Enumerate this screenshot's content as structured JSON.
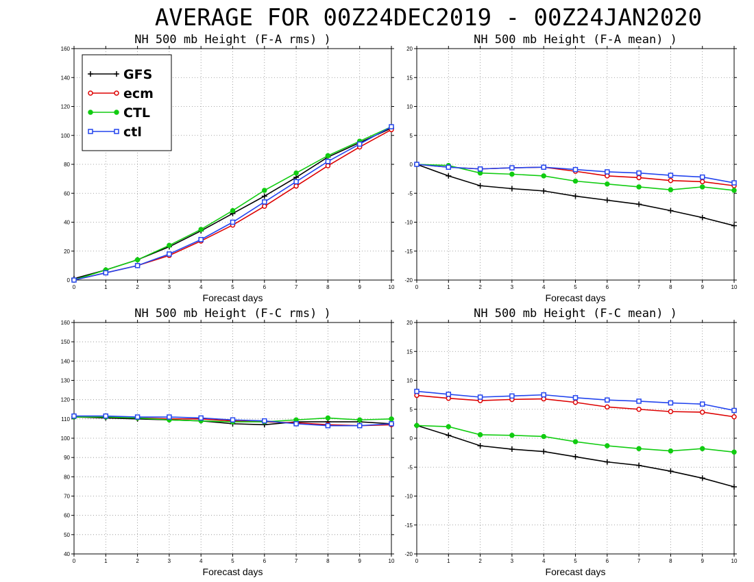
{
  "figure_title": "AVERAGE FOR 00Z24DEC2019 - 00Z24JAN2020",
  "colors": {
    "GFS": "#000000",
    "ecm": "#dd0000",
    "CTL": "#11cc11",
    "ctl": "#2244ee"
  },
  "chart_data": [
    {
      "type": "line",
      "title": "NH 500 mb Height (F-A rms) )",
      "xlabel": "Forecast days",
      "ylabel": "",
      "xlim": [
        0,
        10
      ],
      "ylim": [
        0,
        160
      ],
      "yticks": [
        0,
        20,
        40,
        60,
        80,
        100,
        120,
        140,
        160
      ],
      "grid": true,
      "legend": "top-left",
      "x": [
        0,
        1,
        2,
        3,
        4,
        5,
        6,
        7,
        8,
        9,
        10
      ],
      "series": [
        {
          "name": "GFS",
          "marker": "plus",
          "values": [
            1,
            7,
            14,
            23,
            34,
            46,
            58,
            71,
            85,
            95,
            105
          ]
        },
        {
          "name": "ecm",
          "marker": "circle-open",
          "values": [
            0,
            5,
            10,
            17,
            27,
            38,
            51,
            65,
            79,
            92,
            104
          ]
        },
        {
          "name": "CTL",
          "marker": "circle-filled",
          "values": [
            0,
            7,
            14,
            24,
            35,
            48,
            62,
            74,
            86,
            96,
            106
          ]
        },
        {
          "name": "ctl",
          "marker": "square-open",
          "values": [
            0,
            5,
            10,
            18,
            28,
            40,
            54,
            68,
            82,
            94,
            106
          ]
        }
      ]
    },
    {
      "type": "line",
      "title": "NH 500 mb Height (F-A mean) )",
      "xlabel": "Forecast days",
      "ylabel": "",
      "xlim": [
        0,
        10
      ],
      "ylim": [
        -20,
        20
      ],
      "yticks": [
        -20,
        -15,
        -10,
        -5,
        0,
        5,
        10,
        15,
        20
      ],
      "grid": true,
      "x": [
        0,
        1,
        2,
        3,
        4,
        5,
        6,
        7,
        8,
        9,
        10
      ],
      "series": [
        {
          "name": "GFS",
          "marker": "plus",
          "values": [
            0,
            -2,
            -3.7,
            -4.2,
            -4.6,
            -5.5,
            -6.2,
            -6.9,
            -8,
            -9.2,
            -10.6
          ]
        },
        {
          "name": "ecm",
          "marker": "circle-open",
          "values": [
            0,
            -0.5,
            -0.8,
            -0.6,
            -0.5,
            -1.2,
            -2.0,
            -2.3,
            -2.8,
            -3.0,
            -3.7
          ]
        },
        {
          "name": "CTL",
          "marker": "circle-filled",
          "values": [
            0,
            -0.2,
            -1.5,
            -1.7,
            -2.0,
            -2.9,
            -3.4,
            -3.9,
            -4.4,
            -3.9,
            -4.5
          ]
        },
        {
          "name": "ctl",
          "marker": "square-open",
          "values": [
            0,
            -0.5,
            -0.8,
            -0.6,
            -0.5,
            -0.9,
            -1.3,
            -1.5,
            -1.9,
            -2.2,
            -3.2
          ]
        }
      ]
    },
    {
      "type": "line",
      "title": "NH 500 mb Height (F-C rms) )",
      "xlabel": "Forecast days",
      "ylabel": "",
      "xlim": [
        0,
        10
      ],
      "ylim": [
        40,
        160
      ],
      "yticks": [
        40,
        50,
        60,
        70,
        80,
        90,
        100,
        110,
        120,
        130,
        140,
        150,
        160
      ],
      "grid": true,
      "x": [
        0,
        1,
        2,
        3,
        4,
        5,
        6,
        7,
        8,
        9,
        10
      ],
      "series": [
        {
          "name": "GFS",
          "marker": "plus",
          "values": [
            111,
            110.5,
            110,
            109.5,
            109,
            107.5,
            107,
            108.5,
            108.5,
            108.5,
            107.5
          ]
        },
        {
          "name": "ecm",
          "marker": "circle-open",
          "values": [
            111,
            111,
            110.5,
            110,
            110,
            109,
            108.5,
            108,
            107,
            106.5,
            107
          ]
        },
        {
          "name": "CTL",
          "marker": "circle-filled",
          "values": [
            111,
            111,
            110.5,
            109.5,
            109,
            108.5,
            108.5,
            109.5,
            110.5,
            109.5,
            110
          ]
        },
        {
          "name": "ctl",
          "marker": "square-open",
          "values": [
            111.5,
            111.5,
            111,
            111,
            110.5,
            109.5,
            109,
            107.5,
            106.5,
            106.5,
            107.5
          ]
        }
      ]
    },
    {
      "type": "line",
      "title": "NH 500 mb Height (F-C mean) )",
      "xlabel": "Forecast days",
      "ylabel": "",
      "xlim": [
        0,
        10
      ],
      "ylim": [
        -20,
        20
      ],
      "yticks": [
        -20,
        -15,
        -10,
        -5,
        0,
        5,
        10,
        15,
        20
      ],
      "grid": true,
      "x": [
        0,
        1,
        2,
        3,
        4,
        5,
        6,
        7,
        8,
        9,
        10
      ],
      "series": [
        {
          "name": "GFS",
          "marker": "plus",
          "values": [
            2.2,
            0.5,
            -1.3,
            -1.9,
            -2.3,
            -3.2,
            -4.1,
            -4.7,
            -5.7,
            -6.9,
            -8.4
          ]
        },
        {
          "name": "ecm",
          "marker": "circle-open",
          "values": [
            7.4,
            6.9,
            6.5,
            6.7,
            6.8,
            6.2,
            5.4,
            5.0,
            4.6,
            4.5,
            3.7
          ]
        },
        {
          "name": "CTL",
          "marker": "circle-filled",
          "values": [
            2.2,
            2.0,
            0.6,
            0.5,
            0.3,
            -0.6,
            -1.3,
            -1.8,
            -2.2,
            -1.8,
            -2.4
          ]
        },
        {
          "name": "ctl",
          "marker": "square-open",
          "values": [
            8.1,
            7.6,
            7.1,
            7.3,
            7.5,
            7.0,
            6.6,
            6.4,
            6.1,
            5.9,
            4.8
          ]
        }
      ]
    }
  ]
}
